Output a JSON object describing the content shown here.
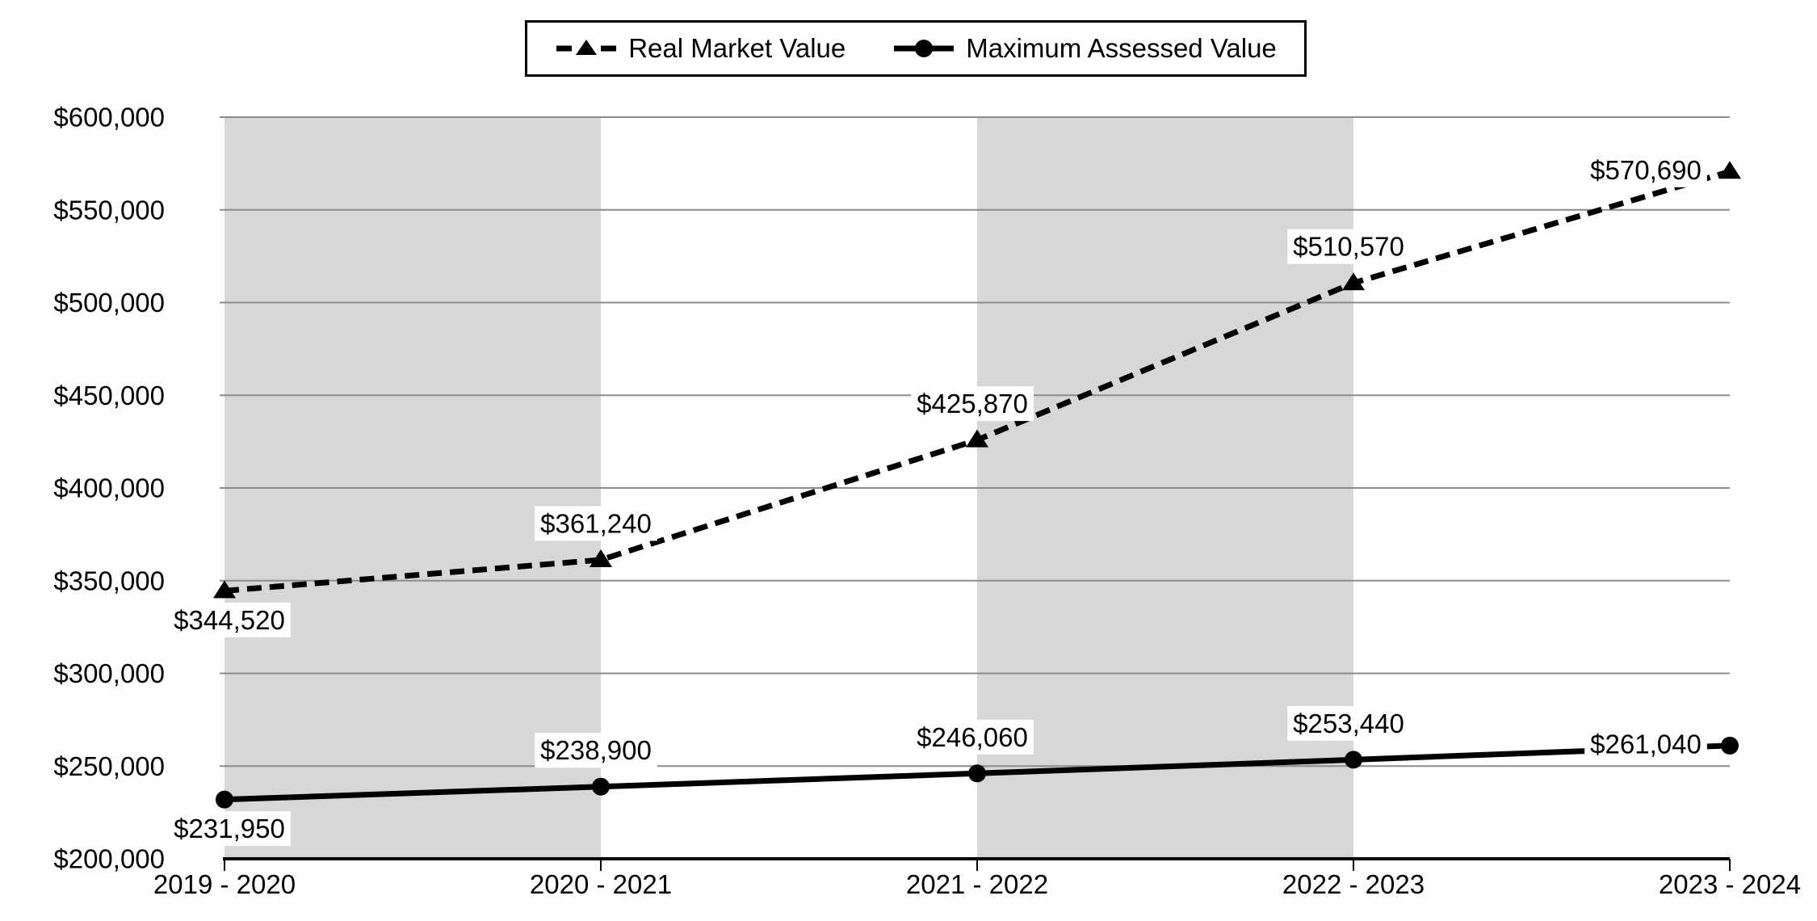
{
  "chart_data": {
    "type": "line",
    "title": "",
    "categories": [
      "2019 - 2020",
      "2020 - 2021",
      "2021 - 2022",
      "2022 - 2023",
      "2023 - 2024"
    ],
    "series": [
      {
        "name": "Real Market Value",
        "values": [
          344520,
          361240,
          425870,
          510570,
          570690
        ],
        "data_labels": [
          "$344,520",
          "$361,240",
          "$425,870",
          "$510,570",
          "$570,690"
        ],
        "label_positions": [
          "below",
          "above",
          "above",
          "above",
          "left"
        ],
        "line_style": "dashed",
        "marker": "triangle",
        "color": "#000000"
      },
      {
        "name": "Maximum Assessed Value",
        "values": [
          231950,
          238900,
          246060,
          253440,
          261040
        ],
        "data_labels": [
          "$231,950",
          "$238,900",
          "$246,060",
          "$253,440",
          "$261,040"
        ],
        "label_positions": [
          "below",
          "above",
          "above",
          "above",
          "left"
        ],
        "line_style": "solid",
        "marker": "circle",
        "color": "#000000"
      }
    ],
    "xlabel": "",
    "ylabel": "",
    "ylim": [
      200000,
      600000
    ],
    "y_step": 50000,
    "y_tick_labels": [
      "$200,000",
      "$250,000",
      "$300,000",
      "$350,000",
      "$400,000",
      "$450,000",
      "$500,000",
      "$550,000",
      "$600,000"
    ],
    "grid": true,
    "legend_position": "top-center",
    "plot_bands": {
      "color": "#d7d7d7",
      "between_category_indices": [
        [
          0,
          1
        ],
        [
          2,
          3
        ]
      ]
    },
    "colors": {
      "gridline": "#8c8c8c",
      "axis": "#000000",
      "text": "#000000",
      "label_background": "#ffffff",
      "plot_background": "#ffffff"
    }
  }
}
